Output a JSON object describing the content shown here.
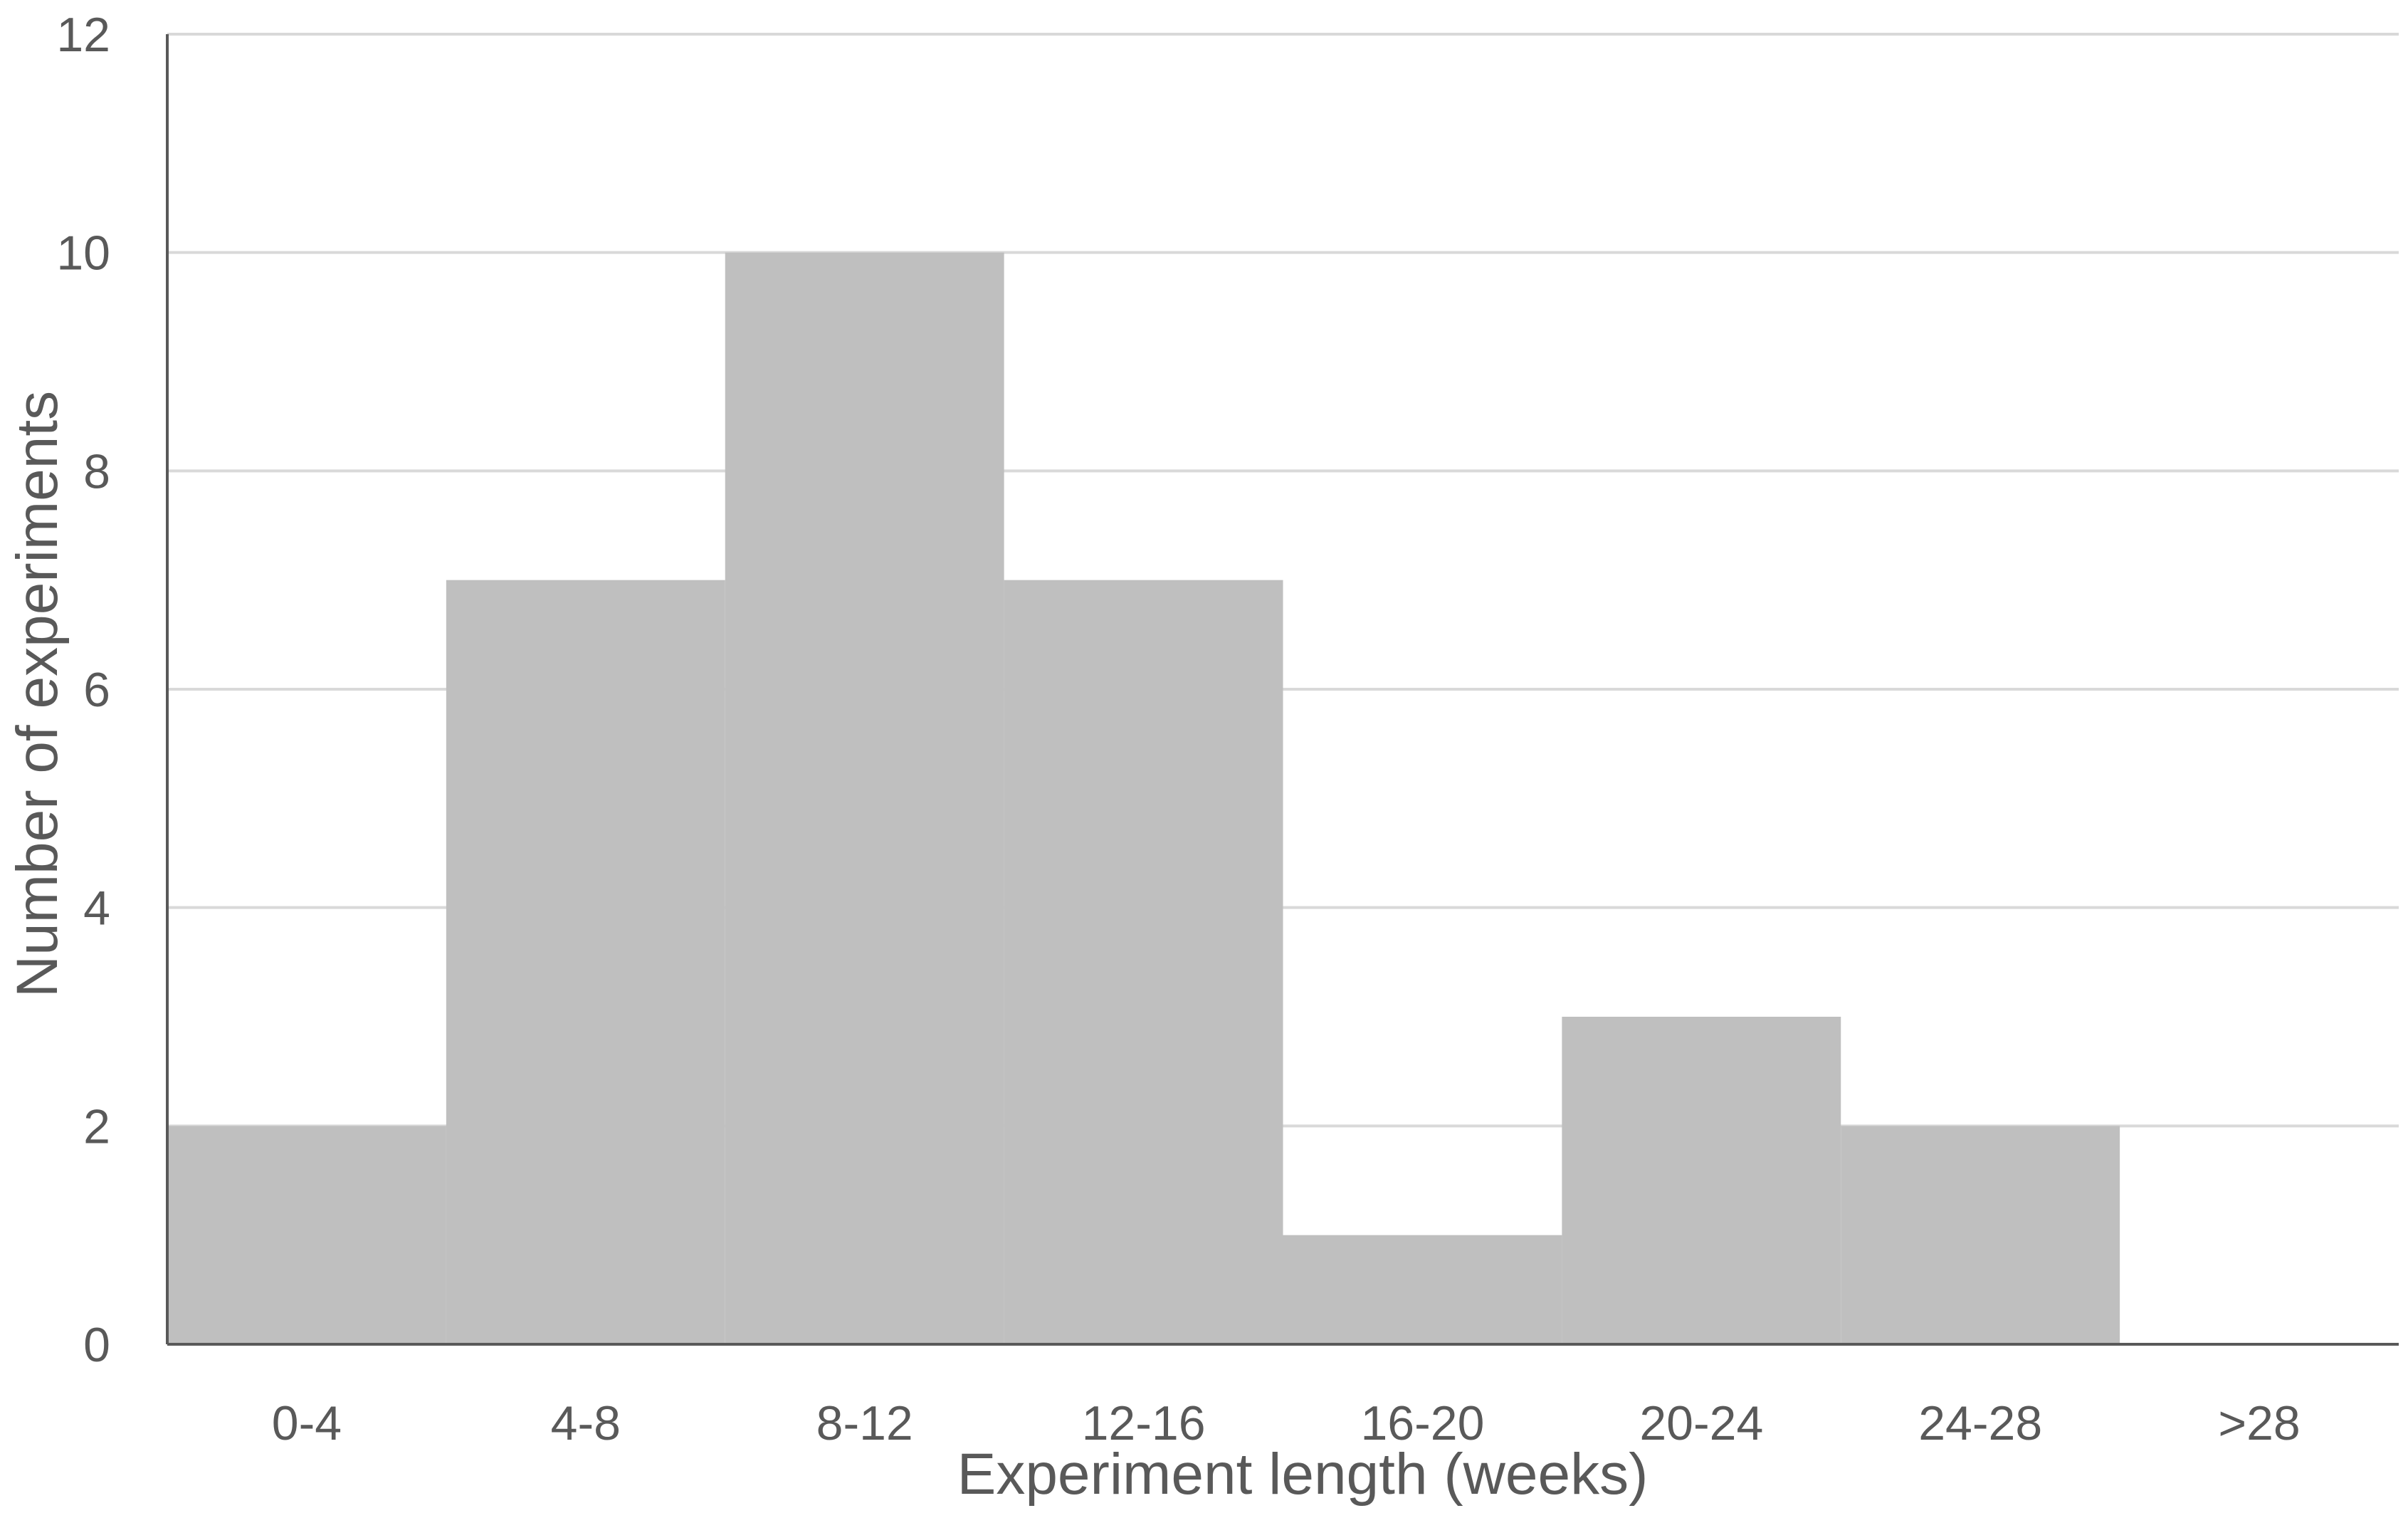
{
  "chart_data": {
    "type": "bar",
    "title": "",
    "xlabel": "Experiment length (weeks)",
    "ylabel": "Number of experiments",
    "categories": [
      "0-4",
      "4-8",
      "8-12",
      "12-16",
      "16-20",
      "20-24",
      "24-28",
      ">28"
    ],
    "values": [
      2,
      7,
      10,
      7,
      1,
      3,
      2,
      0
    ],
    "ylim": [
      0,
      12
    ],
    "yticks": [
      "0",
      "2",
      "4",
      "6",
      "8",
      "10",
      "12"
    ],
    "grid": true,
    "legend": "none",
    "bar_color": "#bfbfbf",
    "grid_color": "#d9d9d9",
    "axis_color": "#595959"
  }
}
